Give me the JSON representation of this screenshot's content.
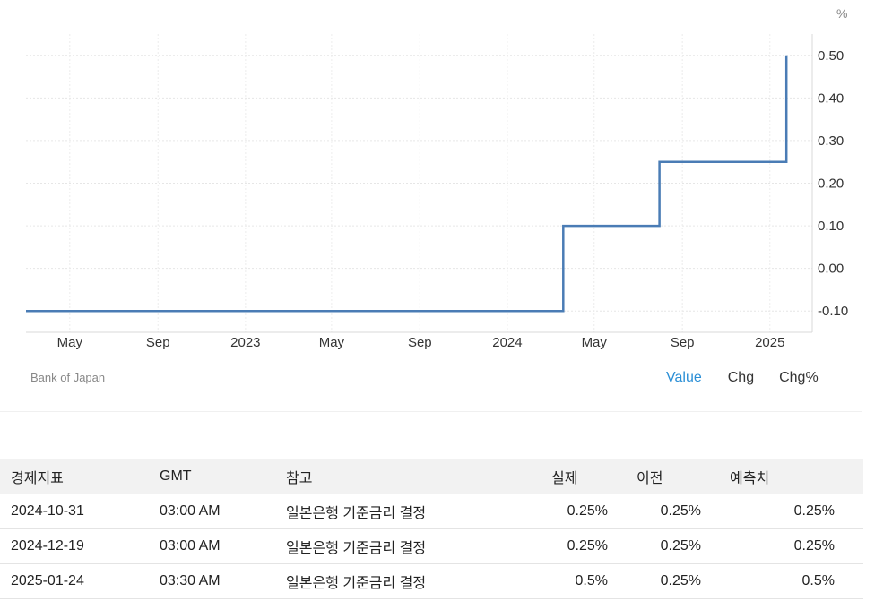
{
  "chart_data": {
    "type": "line",
    "step": true,
    "unit": "%",
    "x_start": "2022-03-01",
    "x_end": "2025-03-01",
    "ylim": [
      -0.15,
      0.55
    ],
    "y_ticks": [
      0.5,
      0.4,
      0.3,
      0.2,
      0.1,
      0.0,
      -0.1
    ],
    "y_tick_labels": [
      "0.50",
      "0.40",
      "0.30",
      "0.20",
      "0.10",
      "0.00",
      "-0.10"
    ],
    "x_ticks": [
      {
        "label": "May",
        "date": "2022-05-01"
      },
      {
        "label": "Sep",
        "date": "2022-09-01"
      },
      {
        "label": "2023",
        "date": "2023-01-01"
      },
      {
        "label": "May",
        "date": "2023-05-01"
      },
      {
        "label": "Sep",
        "date": "2023-09-01"
      },
      {
        "label": "2024",
        "date": "2024-01-01"
      },
      {
        "label": "May",
        "date": "2024-05-01"
      },
      {
        "label": "Sep",
        "date": "2024-09-01"
      },
      {
        "label": "2025",
        "date": "2025-01-01"
      }
    ],
    "points": [
      {
        "date": "2022-03-01",
        "value": -0.1
      },
      {
        "date": "2024-03-19",
        "value": -0.1
      },
      {
        "date": "2024-03-19",
        "value": 0.1
      },
      {
        "date": "2024-07-31",
        "value": 0.1
      },
      {
        "date": "2024-07-31",
        "value": 0.25
      },
      {
        "date": "2025-01-24",
        "value": 0.25
      },
      {
        "date": "2025-01-24",
        "value": 0.5
      }
    ],
    "line_color": "#4a7cb5",
    "grid": true
  },
  "source": "Bank of Japan",
  "view_tabs": [
    {
      "label": "Value",
      "active": true
    },
    {
      "label": "Chg",
      "active": false
    },
    {
      "label": "Chg%",
      "active": false
    }
  ],
  "table": {
    "headers": [
      "경제지표",
      "GMT",
      "참고",
      "실제",
      "이전",
      "예측치"
    ],
    "rows": [
      {
        "date": "2024-10-31",
        "gmt": "03:00 AM",
        "ref": "일본은행 기준금리 결정",
        "actual": "0.25%",
        "previous": "0.25%",
        "forecast": "0.25%"
      },
      {
        "date": "2024-12-19",
        "gmt": "03:00 AM",
        "ref": "일본은행 기준금리 결정",
        "actual": "0.25%",
        "previous": "0.25%",
        "forecast": "0.25%"
      },
      {
        "date": "2025-01-24",
        "gmt": "03:30 AM",
        "ref": "일본은행 기준금리 결정",
        "actual": "0.5%",
        "previous": "0.25%",
        "forecast": "0.5%"
      }
    ]
  }
}
